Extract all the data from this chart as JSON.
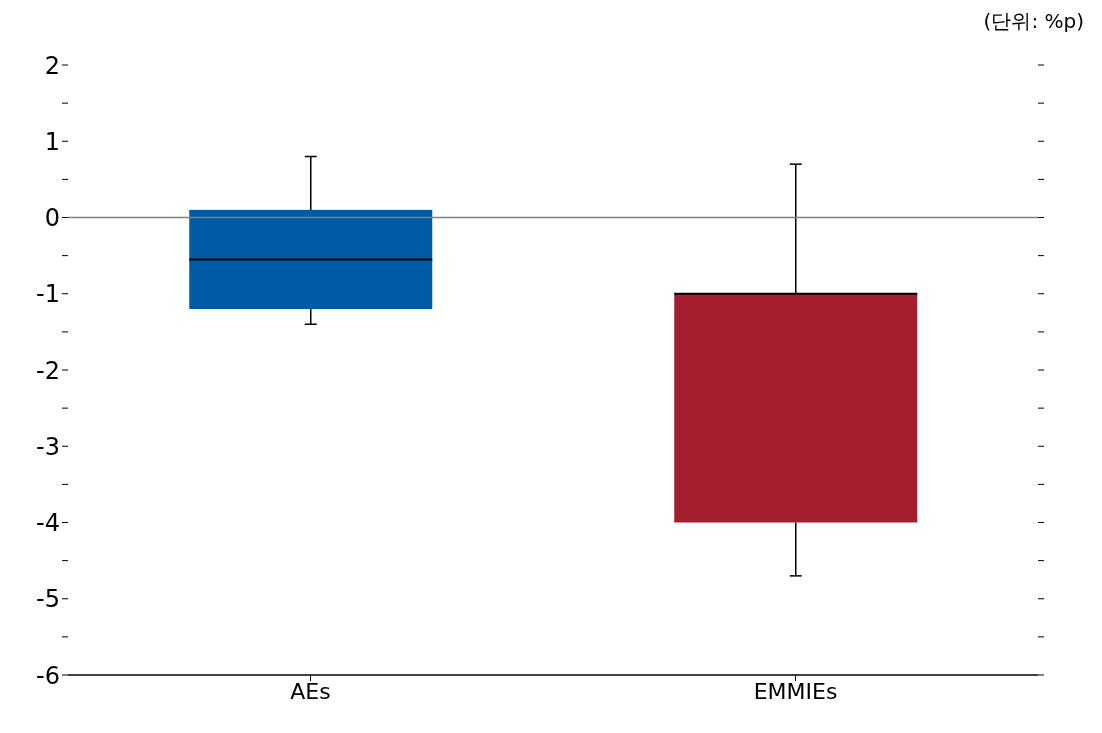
{
  "chart_data": {
    "type": "box",
    "categories": [
      "AEs",
      "EMMIEs"
    ],
    "boxes": [
      {
        "low": -1.4,
        "q1": -1.2,
        "median": -0.55,
        "q3": 0.1,
        "high": 0.8
      },
      {
        "low": -4.7,
        "q1": -4.0,
        "median": -1.0,
        "q3": -1.0,
        "high": 0.7
      }
    ],
    "colors": [
      "#005ba6",
      "#a51e2f"
    ],
    "ylim": [
      -6,
      2
    ],
    "yticks": [
      -6,
      {
        "value": -5.5,
        "label": null
      },
      -5,
      {
        "value": -4.5,
        "label": null
      },
      -4,
      {
        "value": -3.5,
        "label": null
      },
      -3,
      {
        "value": -2.5,
        "label": null
      },
      -2,
      {
        "value": -1.5,
        "label": null
      },
      -1,
      {
        "value": -0.5,
        "label": null
      },
      0,
      {
        "value": 0.5,
        "label": null
      },
      1,
      {
        "value": 1.5,
        "label": null
      },
      2
    ],
    "ref_lines": [
      {
        "axis": "y",
        "value": 0,
        "color": "#808080"
      }
    ],
    "annotations": [
      "(단위: %p)"
    ]
  }
}
